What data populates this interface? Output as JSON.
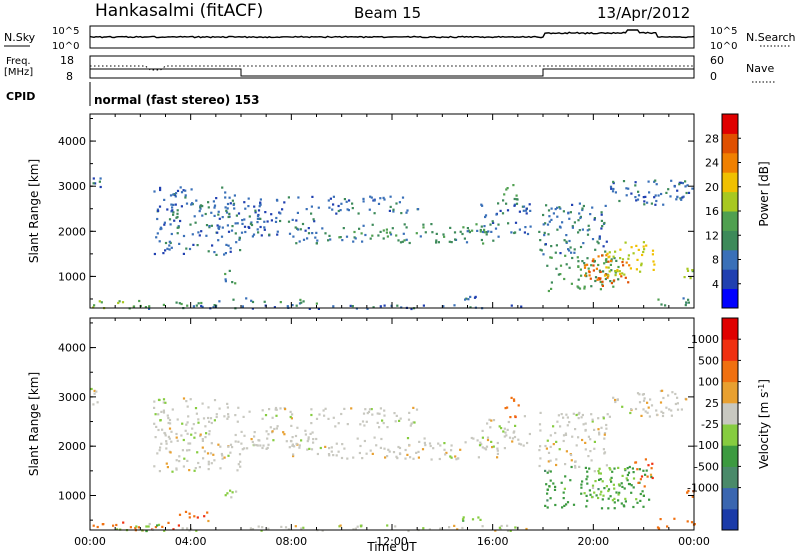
{
  "header": {
    "station": "Hankasalmi (fitACF)",
    "beam": "Beam 15",
    "date": "13/Apr/2012"
  },
  "noise_panel": {
    "left_label": "N.Sky",
    "right_label": "N.Search",
    "left_ticks": [
      "10^5",
      "10^0"
    ],
    "right_ticks": [
      "10^5",
      "10^0"
    ]
  },
  "freq_panel": {
    "left_label_top": "Freq.",
    "left_label_bottom": "[MHz]",
    "right_label": "Nave",
    "left_ticks": [
      "18",
      "8"
    ],
    "right_ticks": [
      "60",
      "0"
    ]
  },
  "cpid": {
    "label": "CPID",
    "program": "normal (fast stereo) 153"
  },
  "time_axis": {
    "label": "Time UT",
    "ticks": [
      "00:00",
      "04:00",
      "08:00",
      "12:00",
      "16:00",
      "20:00",
      "00:00"
    ]
  },
  "colors": {
    "power_scale": [
      "#0000ff",
      "#2040b0",
      "#3a70b8",
      "#3d8a5a",
      "#50a050",
      "#a8c820",
      "#f0c000",
      "#f08000",
      "#e05000",
      "#e00000"
    ],
    "velocity_scale": [
      "#1a3aa8",
      "#3a66b0",
      "#4a8a6a",
      "#3c9a40",
      "#86cc40",
      "#c8c8c0",
      "#e8a030",
      "#f07010",
      "#f03010",
      "#e00000"
    ]
  },
  "chart_data": [
    {
      "type": "heatmap",
      "name_hint": "power",
      "x_unit": "hours UT",
      "xlim": [
        0,
        24
      ],
      "ylabel": "Slant Range [km]",
      "ylim": [
        300,
        4600
      ],
      "yticks": [
        1000,
        2000,
        3000,
        4000
      ],
      "colorbar_label": "Power [dB]",
      "colorbar_ticks": [
        "4",
        "8",
        "12",
        "16",
        "20",
        "24",
        "28"
      ],
      "colorbar_range": [
        0,
        32
      ],
      "bands": [
        {
          "t0": 2.5,
          "t1": 6.0,
          "r0": 1500,
          "r1": 3000,
          "level": 8
        },
        {
          "t0": 4.3,
          "t1": 5.5,
          "r0": 2350,
          "r1": 2650,
          "level": 9
        },
        {
          "t0": 5.3,
          "t1": 5.8,
          "r0": 850,
          "r1": 1150,
          "level": 12
        },
        {
          "t0": 6.0,
          "t1": 9.0,
          "r0": 1900,
          "r1": 2800,
          "level": 8
        },
        {
          "t0": 8.0,
          "t1": 10.5,
          "r0": 1750,
          "r1": 2100,
          "level": 10
        },
        {
          "t0": 9.0,
          "t1": 13.0,
          "r0": 2400,
          "r1": 2800,
          "level": 8
        },
        {
          "t0": 10.5,
          "t1": 16.2,
          "r0": 1750,
          "r1": 2200,
          "level": 11
        },
        {
          "t0": 15.5,
          "t1": 17.5,
          "r0": 1950,
          "r1": 2650,
          "level": 8
        },
        {
          "t0": 16.3,
          "t1": 17.0,
          "r0": 2600,
          "r1": 3100,
          "level": 13
        },
        {
          "t0": 17.8,
          "t1": 20.5,
          "r0": 1500,
          "r1": 2700,
          "level": 9
        },
        {
          "t0": 18.0,
          "t1": 21.0,
          "r0": 700,
          "r1": 1500,
          "level": 13
        },
        {
          "t0": 19.6,
          "t1": 21.4,
          "r0": 800,
          "r1": 1500,
          "level": 26
        },
        {
          "t0": 20.4,
          "t1": 22.4,
          "r0": 1000,
          "r1": 1800,
          "level": 19
        },
        {
          "t0": 20.5,
          "t1": 23.8,
          "r0": 2600,
          "r1": 3150,
          "level": 8
        },
        {
          "t0": 23.0,
          "t1": 24.0,
          "r0": 2800,
          "r1": 3150,
          "level": 7
        },
        {
          "t0": 0.0,
          "t1": 3.0,
          "r0": 300,
          "r1": 480,
          "level": 16
        },
        {
          "t0": 2.0,
          "t1": 4.5,
          "r0": 300,
          "r1": 450,
          "level": 12
        },
        {
          "t0": 3.5,
          "t1": 17.5,
          "r0": 300,
          "r1": 400,
          "level": 8
        },
        {
          "t0": 5.0,
          "t1": 7.0,
          "r0": 450,
          "r1": 550,
          "level": 9
        },
        {
          "t0": 7.0,
          "t1": 9.0,
          "r0": 420,
          "r1": 520,
          "level": 12
        },
        {
          "t0": 14.5,
          "t1": 15.5,
          "r0": 500,
          "r1": 580,
          "level": 8
        },
        {
          "t0": 22.5,
          "t1": 24.0,
          "r0": 350,
          "r1": 550,
          "level": 11
        },
        {
          "t0": 23.5,
          "t1": 24.0,
          "r0": 900,
          "r1": 1200,
          "level": 16
        },
        {
          "t0": 0.0,
          "t1": 0.4,
          "r0": 2850,
          "r1": 3200,
          "level": 8
        }
      ]
    },
    {
      "type": "heatmap",
      "name_hint": "velocity",
      "x_unit": "hours UT",
      "xlim": [
        0,
        24
      ],
      "ylabel": "Slant Range [km]",
      "ylim": [
        300,
        4600
      ],
      "yticks": [
        1000,
        2000,
        3000,
        4000
      ],
      "colorbar_label": "Velocity [m s^-1]",
      "colorbar_ticks": [
        "1000",
        "500",
        "100",
        "25",
        "-25",
        "-100",
        "-500",
        "-1000"
      ],
      "bands": [
        {
          "t0": 2.5,
          "t1": 6.0,
          "r0": 1500,
          "r1": 3000,
          "level": 5
        },
        {
          "t0": 2.6,
          "t1": 3.0,
          "r0": 2500,
          "r1": 3000,
          "level": 4
        },
        {
          "t0": 5.3,
          "t1": 5.8,
          "r0": 850,
          "r1": 1150,
          "level": 4
        },
        {
          "t0": 6.0,
          "t1": 9.0,
          "r0": 1900,
          "r1": 2800,
          "level": 5
        },
        {
          "t0": 8.0,
          "t1": 10.5,
          "r0": 1750,
          "r1": 2100,
          "level": 5
        },
        {
          "t0": 9.0,
          "t1": 13.0,
          "r0": 2400,
          "r1": 2800,
          "level": 5
        },
        {
          "t0": 10.5,
          "t1": 16.2,
          "r0": 1750,
          "r1": 2200,
          "level": 5
        },
        {
          "t0": 15.5,
          "t1": 17.5,
          "r0": 1950,
          "r1": 2650,
          "level": 5
        },
        {
          "t0": 16.4,
          "t1": 17.0,
          "r0": 2600,
          "r1": 3100,
          "level": 7
        },
        {
          "t0": 17.8,
          "t1": 20.5,
          "r0": 1500,
          "r1": 2700,
          "level": 5
        },
        {
          "t0": 18.0,
          "t1": 22.3,
          "r0": 750,
          "r1": 1600,
          "level": 3
        },
        {
          "t0": 19.8,
          "t1": 21.3,
          "r0": 900,
          "r1": 1600,
          "level": 4
        },
        {
          "t0": 21.6,
          "t1": 22.4,
          "r0": 1200,
          "r1": 1800,
          "level": 7
        },
        {
          "t0": 20.5,
          "t1": 23.8,
          "r0": 2600,
          "r1": 3150,
          "level": 5
        },
        {
          "t0": 0.0,
          "t1": 3.5,
          "r0": 300,
          "r1": 480,
          "level": 7
        },
        {
          "t0": 1.0,
          "t1": 4.5,
          "r0": 300,
          "r1": 450,
          "level": 4
        },
        {
          "t0": 3.5,
          "t1": 17.5,
          "r0": 300,
          "r1": 420,
          "level": 5
        },
        {
          "t0": 3.5,
          "t1": 5.0,
          "r0": 500,
          "r1": 700,
          "level": 7
        },
        {
          "t0": 14.5,
          "t1": 15.5,
          "r0": 500,
          "r1": 580,
          "level": 4
        },
        {
          "t0": 22.5,
          "t1": 24.0,
          "r0": 350,
          "r1": 550,
          "level": 7
        },
        {
          "t0": 23.6,
          "t1": 24.0,
          "r0": 950,
          "r1": 1250,
          "level": 7
        },
        {
          "t0": 0.0,
          "t1": 0.4,
          "r0": 2850,
          "r1": 3200,
          "level": 5
        }
      ]
    }
  ]
}
